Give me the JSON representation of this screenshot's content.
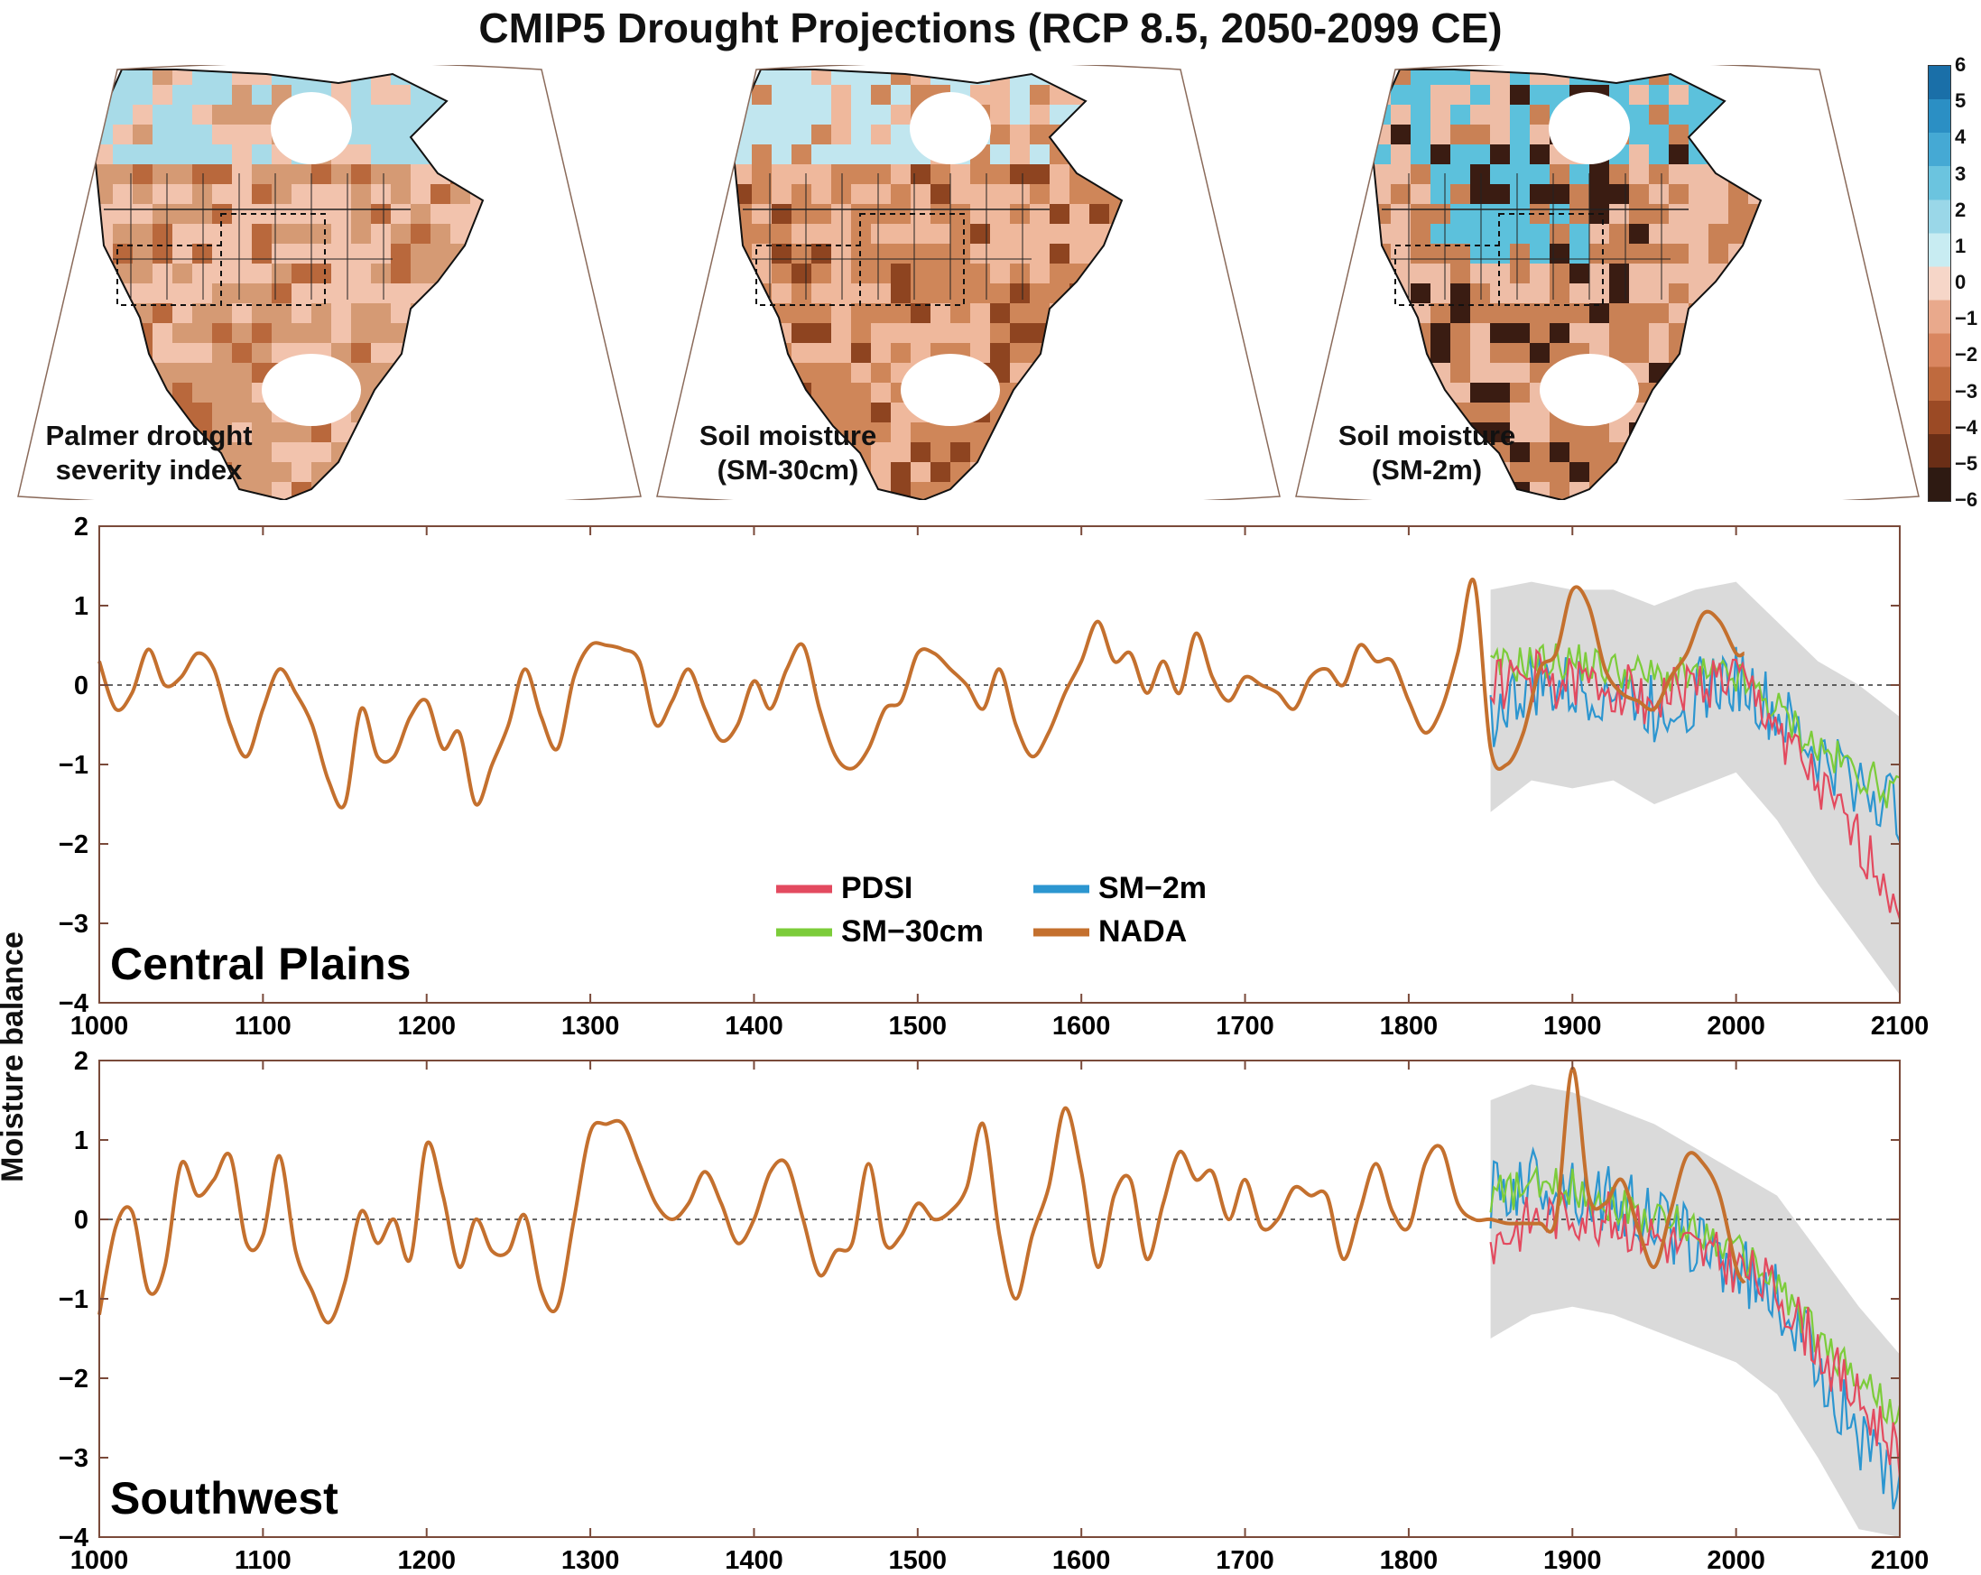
{
  "title": "CMIP5 Drought Projections (RCP 8.5, 2050-2099 CE)",
  "maps": [
    {
      "label_line1": "Palmer drought",
      "label_line2": "severity index"
    },
    {
      "label_line1": "Soil moisture",
      "label_line2": "(SM-30cm)"
    },
    {
      "label_line1": "Soil moisture",
      "label_line2": "(SM-2m)"
    }
  ],
  "colorbar": {
    "ticks": [
      "6",
      "5",
      "4",
      "3",
      "2",
      "1",
      "0",
      "−1",
      "−2",
      "−3",
      "−4",
      "−5",
      "−6"
    ],
    "wet_color": "#1a7fb6",
    "dry_color": "#3a1e12"
  },
  "ylabel": "Moisture balance",
  "colors": {
    "PDSI": "#e34a5f",
    "SM-30cm": "#7ccc3a",
    "SM-2m": "#2c96d0",
    "NADA": "#c4702e",
    "envelope": "#d3d3d3",
    "axis": "#7a4a3a"
  },
  "chart_data": [
    {
      "type": "line",
      "panel_title": "Central Plains",
      "xlim": [
        1000,
        2100
      ],
      "ylim": [
        -4,
        2
      ],
      "x_ticks": [
        "1000",
        "1100",
        "1200",
        "1300",
        "1400",
        "1500",
        "1600",
        "1700",
        "1800",
        "1900",
        "2000",
        "2100"
      ],
      "y_ticks": [
        "2",
        "1",
        "0",
        "−1",
        "−2",
        "−3",
        "−4"
      ],
      "legend": [
        "PDSI",
        "SM−30cm",
        "SM−2m",
        "NADA"
      ],
      "series": [
        {
          "name": "NADA",
          "x": [
            1000,
            1010,
            1020,
            1030,
            1040,
            1050,
            1060,
            1070,
            1080,
            1090,
            1100,
            1110,
            1120,
            1130,
            1140,
            1150,
            1160,
            1170,
            1180,
            1190,
            1200,
            1210,
            1220,
            1230,
            1240,
            1250,
            1260,
            1270,
            1280,
            1290,
            1300,
            1310,
            1320,
            1330,
            1340,
            1350,
            1360,
            1370,
            1380,
            1390,
            1400,
            1410,
            1420,
            1430,
            1440,
            1450,
            1460,
            1470,
            1480,
            1490,
            1500,
            1510,
            1520,
            1530,
            1540,
            1550,
            1560,
            1570,
            1580,
            1590,
            1600,
            1610,
            1620,
            1630,
            1640,
            1650,
            1660,
            1670,
            1680,
            1690,
            1700,
            1710,
            1720,
            1730,
            1740,
            1750,
            1760,
            1770,
            1780,
            1790,
            1800,
            1810,
            1820,
            1830,
            1840,
            1850,
            1860,
            1870,
            1880,
            1890,
            1900,
            1910,
            1920,
            1930,
            1940,
            1950,
            1960,
            1970,
            1980,
            1990,
            2000,
            2005
          ],
          "y": [
            0.3,
            -0.3,
            -0.1,
            0.45,
            0.0,
            0.1,
            0.4,
            0.2,
            -0.5,
            -0.9,
            -0.3,
            0.2,
            -0.1,
            -0.5,
            -1.2,
            -1.5,
            -0.3,
            -0.9,
            -0.9,
            -0.4,
            -0.2,
            -0.8,
            -0.6,
            -1.5,
            -1.0,
            -0.5,
            0.2,
            -0.4,
            -0.8,
            0.1,
            0.5,
            0.5,
            0.45,
            0.3,
            -0.5,
            -0.2,
            0.2,
            -0.3,
            -0.7,
            -0.5,
            0.05,
            -0.3,
            0.2,
            0.5,
            -0.3,
            -0.9,
            -1.05,
            -0.8,
            -0.3,
            -0.2,
            0.4,
            0.4,
            0.2,
            0.0,
            -0.3,
            0.2,
            -0.5,
            -0.9,
            -0.6,
            -0.1,
            0.3,
            0.8,
            0.3,
            0.4,
            -0.1,
            0.3,
            -0.1,
            0.65,
            0.1,
            -0.2,
            0.1,
            0.0,
            -0.1,
            -0.3,
            0.1,
            0.2,
            0.0,
            0.5,
            0.3,
            0.3,
            -0.2,
            -0.6,
            -0.3,
            0.4,
            1.3,
            -0.8,
            -1.0,
            -0.6,
            0.2,
            0.4,
            1.2,
            1.0,
            0.2,
            -0.1,
            -0.2,
            -0.3,
            0.1,
            0.4,
            0.9,
            0.8,
            0.4,
            0.4
          ]
        },
        {
          "name": "SM-30cm",
          "x": [
            1850,
            1875,
            1900,
            1925,
            1950,
            1975,
            2000,
            2025,
            2050,
            2075,
            2100
          ],
          "y": [
            0.2,
            0.3,
            0.3,
            0.2,
            0.1,
            0.1,
            0.1,
            -0.3,
            -0.8,
            -1.1,
            -1.4
          ]
        },
        {
          "name": "SM-2m",
          "x": [
            1850,
            1875,
            1900,
            1925,
            1950,
            1975,
            2000,
            2025,
            2050,
            2075,
            2100
          ],
          "y": [
            -0.4,
            0.0,
            -0.1,
            0.0,
            -0.3,
            -0.1,
            0.1,
            -0.4,
            -0.9,
            -1.2,
            -1.6
          ]
        },
        {
          "name": "PDSI",
          "x": [
            1850,
            1875,
            1900,
            1925,
            1950,
            1975,
            2000,
            2025,
            2050,
            2075,
            2100
          ],
          "y": [
            0.0,
            0.1,
            0.0,
            0.0,
            -0.2,
            0.0,
            0.1,
            -0.5,
            -1.3,
            -2.0,
            -2.7
          ]
        }
      ]
    },
    {
      "type": "line",
      "panel_title": "Southwest",
      "xlim": [
        1000,
        2100
      ],
      "ylim": [
        -4,
        2
      ],
      "x_ticks": [
        "1000",
        "1100",
        "1200",
        "1300",
        "1400",
        "1500",
        "1600",
        "1700",
        "1800",
        "1900",
        "2000",
        "2100"
      ],
      "y_ticks": [
        "2",
        "1",
        "0",
        "−1",
        "−2",
        "−3",
        "−4"
      ],
      "series": [
        {
          "name": "NADA",
          "x": [
            1000,
            1010,
            1020,
            1030,
            1040,
            1050,
            1060,
            1070,
            1080,
            1090,
            1100,
            1110,
            1120,
            1130,
            1140,
            1150,
            1160,
            1170,
            1180,
            1190,
            1200,
            1210,
            1220,
            1230,
            1240,
            1250,
            1260,
            1270,
            1280,
            1290,
            1300,
            1310,
            1320,
            1330,
            1340,
            1350,
            1360,
            1370,
            1380,
            1390,
            1400,
            1410,
            1420,
            1430,
            1440,
            1450,
            1460,
            1470,
            1480,
            1490,
            1500,
            1510,
            1520,
            1530,
            1540,
            1550,
            1560,
            1570,
            1580,
            1590,
            1600,
            1610,
            1620,
            1630,
            1640,
            1650,
            1660,
            1670,
            1680,
            1690,
            1700,
            1710,
            1720,
            1730,
            1740,
            1750,
            1760,
            1770,
            1780,
            1790,
            1800,
            1810,
            1820,
            1830,
            1840,
            1850,
            1860,
            1870,
            1880,
            1890,
            1900,
            1910,
            1920,
            1930,
            1940,
            1950,
            1960,
            1970,
            1980,
            1990,
            2000,
            2005
          ],
          "y": [
            -1.2,
            -0.1,
            0.1,
            -0.9,
            -0.6,
            0.7,
            0.3,
            0.5,
            0.8,
            -0.3,
            -0.2,
            0.8,
            -0.4,
            -0.9,
            -1.3,
            -0.8,
            0.1,
            -0.3,
            0.0,
            -0.5,
            0.95,
            0.3,
            -0.6,
            0.0,
            -0.4,
            -0.4,
            0.05,
            -0.9,
            -1.1,
            0.0,
            1.1,
            1.2,
            1.2,
            0.7,
            0.2,
            0.0,
            0.2,
            0.6,
            0.2,
            -0.3,
            0.0,
            0.6,
            0.7,
            0.0,
            -0.7,
            -0.4,
            -0.3,
            0.7,
            -0.3,
            -0.2,
            0.2,
            0.0,
            0.1,
            0.4,
            1.2,
            -0.2,
            -1.0,
            -0.2,
            0.4,
            1.4,
            0.6,
            -0.6,
            0.3,
            0.5,
            -0.5,
            0.2,
            0.85,
            0.5,
            0.6,
            0.0,
            0.5,
            -0.1,
            0.0,
            0.4,
            0.3,
            0.3,
            -0.5,
            0.1,
            0.7,
            0.1,
            -0.1,
            0.7,
            0.9,
            0.2,
            0.0,
            0.0,
            -0.05,
            -0.05,
            -0.05,
            0.0,
            1.9,
            0.3,
            0.2,
            0.5,
            -0.1,
            -0.6,
            0.1,
            0.8,
            0.7,
            0.3,
            -0.6,
            -0.8
          ]
        },
        {
          "name": "SM-30cm",
          "x": [
            1850,
            1875,
            1900,
            1925,
            1950,
            1975,
            2000,
            2025,
            2050,
            2075,
            2100
          ],
          "y": [
            0.3,
            0.4,
            0.4,
            0.2,
            0.0,
            -0.1,
            -0.4,
            -0.8,
            -1.5,
            -2.0,
            -2.5
          ]
        },
        {
          "name": "SM-2m",
          "x": [
            1850,
            1875,
            1900,
            1925,
            1950,
            1975,
            2000,
            2025,
            2050,
            2075,
            2100
          ],
          "y": [
            0.3,
            0.5,
            0.4,
            0.2,
            0.0,
            -0.3,
            -0.6,
            -1.0,
            -1.8,
            -2.7,
            -3.6
          ]
        },
        {
          "name": "PDSI",
          "x": [
            1850,
            1875,
            1900,
            1925,
            1950,
            1975,
            2000,
            2025,
            2050,
            2075,
            2100
          ],
          "y": [
            -0.3,
            0.0,
            0.1,
            0.0,
            -0.2,
            -0.4,
            -0.6,
            -0.9,
            -1.6,
            -2.3,
            -2.9
          ]
        }
      ]
    }
  ]
}
